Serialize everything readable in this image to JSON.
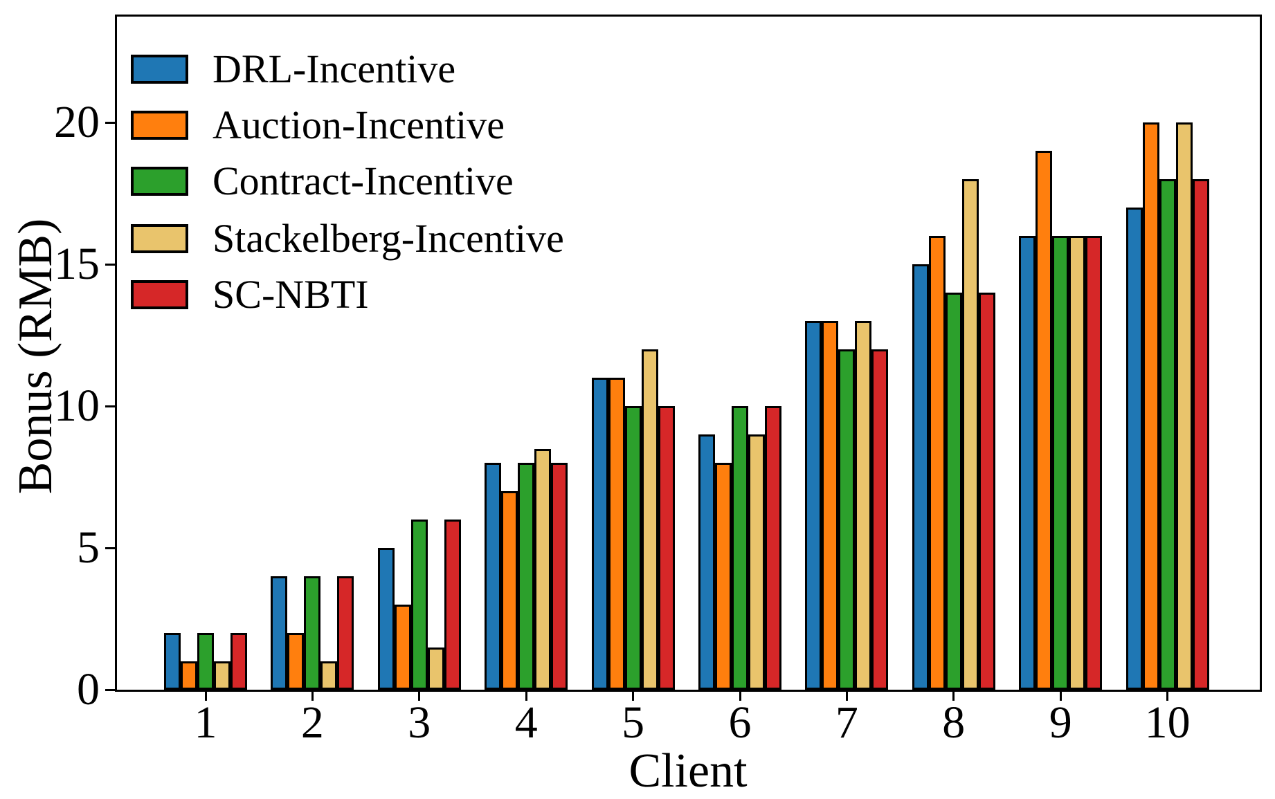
{
  "chart_data": {
    "type": "bar",
    "title": "",
    "xlabel": "Client",
    "ylabel": "Bonus (RMB)",
    "categories": [
      "1",
      "2",
      "3",
      "4",
      "5",
      "6",
      "7",
      "8",
      "9",
      "10"
    ],
    "series": [
      {
        "name": "DRL-Incentive",
        "color": "#1F77B4",
        "values": [
          2,
          4,
          5,
          8,
          11,
          9,
          13,
          15,
          16,
          17
        ]
      },
      {
        "name": "Auction-Incentive",
        "color": "#FF7F0E",
        "values": [
          1,
          2,
          3,
          7,
          11,
          8,
          13,
          16,
          19,
          20
        ]
      },
      {
        "name": "Contract-Incentive",
        "color": "#2CA02C",
        "values": [
          2,
          4,
          6,
          8,
          10,
          10,
          12,
          14,
          16,
          18
        ]
      },
      {
        "name": "Stackelberg-Incentive",
        "color": "#E9C46C",
        "values": [
          1,
          1,
          1.5,
          8.5,
          12,
          9,
          13,
          18,
          16,
          20
        ]
      },
      {
        "name": "SC-NBTI",
        "color": "#D62728",
        "values": [
          2,
          4,
          6,
          8,
          10,
          10,
          12,
          14,
          16,
          18
        ]
      }
    ],
    "yticks": [
      0,
      5,
      10,
      15,
      20
    ],
    "ylim": [
      0,
      23.9
    ],
    "bar_edge_color": "#000000",
    "grid": false,
    "legend_position": "upper left"
  }
}
